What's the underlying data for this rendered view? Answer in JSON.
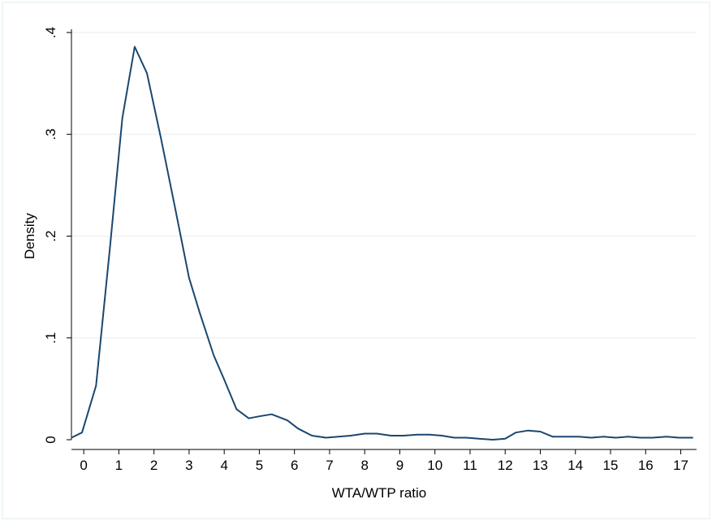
{
  "chart_data": {
    "type": "line",
    "xlabel": "WTA/WTP ratio",
    "ylabel": "Density",
    "xlim": [
      -0.35,
      17.45
    ],
    "ylim": [
      0,
      0.4
    ],
    "xticks": [
      0,
      1,
      2,
      3,
      4,
      5,
      6,
      7,
      8,
      9,
      10,
      11,
      12,
      13,
      14,
      15,
      16,
      17
    ],
    "xtick_labels": [
      "0",
      "1",
      "2",
      "3",
      "4",
      "5",
      "6",
      "7",
      "8",
      "9",
      "10",
      "11",
      "12",
      "13",
      "14",
      "15",
      "16",
      "17"
    ],
    "yticks": [
      0,
      0.1,
      0.2,
      0.3,
      0.4
    ],
    "ytick_labels": [
      "0",
      ".1",
      ".2",
      ".3",
      ".4"
    ],
    "grid": "horizontal",
    "colors": {
      "line": "#1a476f",
      "grid": "#e8ecee",
      "border": "#eaf2f3"
    },
    "series": [
      {
        "x": [
          -0.35,
          -0.05,
          0.35,
          0.75,
          1.1,
          1.45,
          1.8,
          2.2,
          2.6,
          3.0,
          3.3,
          3.7,
          4.0,
          4.35,
          4.7,
          5.0,
          5.35,
          5.8,
          6.1,
          6.5,
          6.9,
          7.25,
          7.6,
          8.0,
          8.35,
          8.75,
          9.1,
          9.5,
          9.85,
          10.2,
          10.55,
          10.9,
          11.25,
          11.65,
          12.0,
          12.3,
          12.65,
          13.0,
          13.35,
          13.7,
          14.1,
          14.45,
          14.8,
          15.15,
          15.5,
          15.85,
          16.2,
          16.6,
          16.95,
          17.35
        ],
        "y": [
          0.002,
          0.007,
          0.053,
          0.19,
          0.316,
          0.386,
          0.36,
          0.296,
          0.228,
          0.159,
          0.125,
          0.083,
          0.059,
          0.03,
          0.021,
          0.023,
          0.025,
          0.019,
          0.011,
          0.004,
          0.002,
          0.003,
          0.004,
          0.006,
          0.006,
          0.004,
          0.004,
          0.005,
          0.005,
          0.004,
          0.002,
          0.002,
          0.001,
          0.0,
          0.001,
          0.007,
          0.009,
          0.008,
          0.003,
          0.003,
          0.003,
          0.002,
          0.003,
          0.002,
          0.003,
          0.002,
          0.002,
          0.003,
          0.002,
          0.002
        ]
      }
    ]
  }
}
